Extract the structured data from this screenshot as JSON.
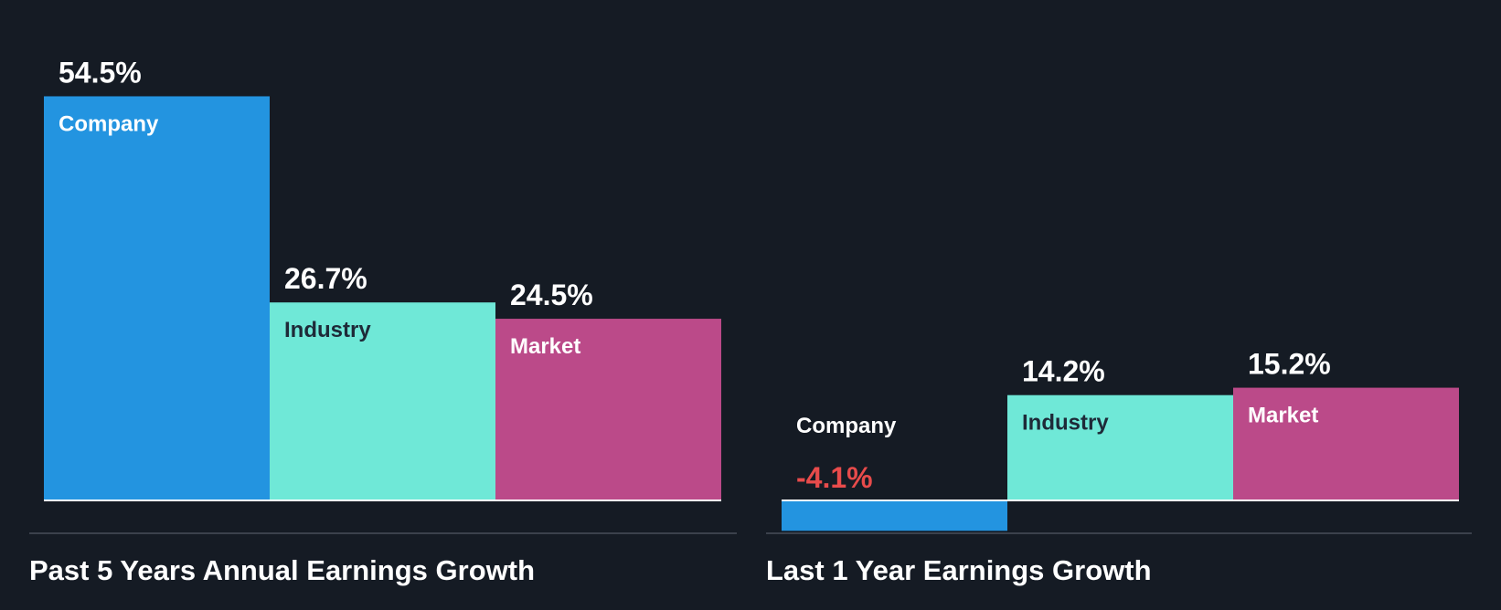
{
  "colors": {
    "background": "#151b24",
    "company": "#2394e0",
    "industry": "#6fe8d7",
    "market": "#bb4a89",
    "negative_value": "#e84b4b",
    "value_text": "#ffffff",
    "baseline": "#ffffff",
    "divider": "#3b414c"
  },
  "chart_data": [
    {
      "type": "bar",
      "title": "Past 5 Years Annual Earnings Growth",
      "categories": [
        "Company",
        "Industry",
        "Market"
      ],
      "values": [
        54.5,
        26.7,
        24.5
      ],
      "value_labels": [
        "54.5%",
        "26.7%",
        "24.5%"
      ],
      "unit": "%",
      "grid": false
    },
    {
      "type": "bar",
      "title": "Last 1 Year Earnings Growth",
      "categories": [
        "Company",
        "Industry",
        "Market"
      ],
      "values": [
        -4.1,
        14.2,
        15.2
      ],
      "value_labels": [
        "-4.1%",
        "14.2%",
        "15.2%"
      ],
      "unit": "%",
      "grid": false
    }
  ]
}
